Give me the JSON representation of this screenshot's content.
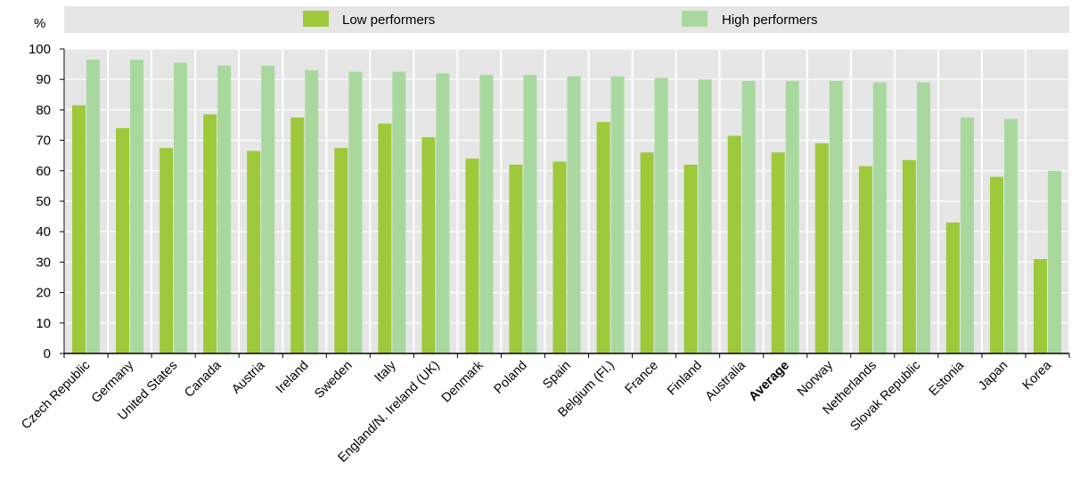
{
  "chart_data": {
    "type": "bar",
    "ylabel": "%",
    "ylim": [
      0,
      100
    ],
    "yticks": [
      0,
      10,
      20,
      30,
      40,
      50,
      60,
      70,
      80,
      90,
      100
    ],
    "legend_position": "top",
    "categories": [
      "Czech Republic",
      "Germany",
      "United States",
      "Canada",
      "Austria",
      "Ireland",
      "Sweden",
      "Italy",
      "England/N. Ireland (UK)",
      "Denmark",
      "Poland",
      "Spain",
      "Belgium (Fl.)",
      "France",
      "Finland",
      "Australia",
      "Average",
      "Norway",
      "Netherlands",
      "Slovak Republic",
      "Estonia",
      "Japan",
      "Korea"
    ],
    "highlighted_category": "Average",
    "series": [
      {
        "name": "Low performers",
        "color": "#9dc93b",
        "values": [
          81.5,
          74,
          67.5,
          78.5,
          66.5,
          77.5,
          67.5,
          75.5,
          71,
          64,
          62,
          63,
          76,
          66,
          62,
          71.5,
          66,
          69,
          61.5,
          63.5,
          43,
          58,
          31
        ]
      },
      {
        "name": "High performers",
        "color": "#a9d89e",
        "values": [
          96.5,
          96.5,
          95.5,
          94.5,
          94.5,
          93,
          92.5,
          92.5,
          92,
          91.5,
          91.5,
          91,
          91,
          90.5,
          90,
          89.5,
          89.5,
          89.5,
          89,
          89,
          77.5,
          77,
          60
        ]
      }
    ]
  }
}
